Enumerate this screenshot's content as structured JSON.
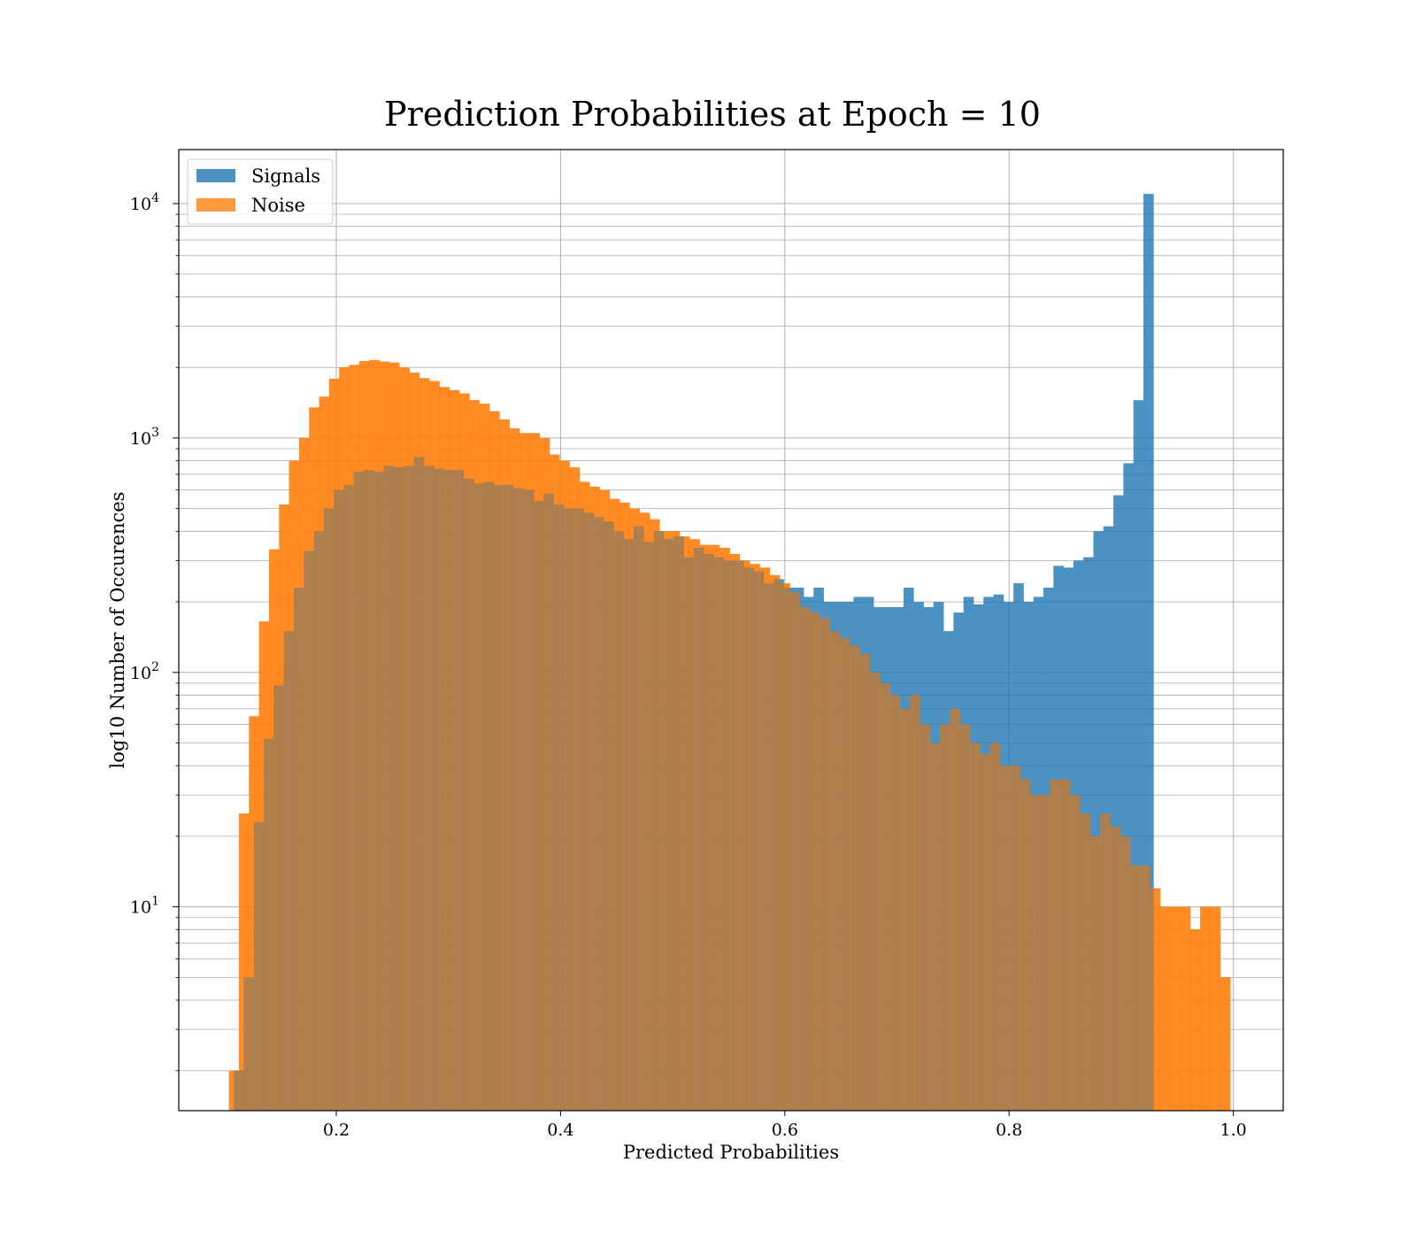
{
  "chart_data": {
    "type": "bar",
    "title": "Prediction Probabilities at Epoch = 10",
    "xlabel": "Predicted Probabilities",
    "ylabel": "log10 Number of Occurences",
    "x_ticks": [
      "0.2",
      "0.4",
      "0.6",
      "0.8",
      "1.0"
    ],
    "x_tick_values": [
      0.2,
      0.4,
      0.6,
      0.8,
      1.0
    ],
    "y_ticks": [
      {
        "base": "10",
        "exp": "1",
        "value": 10
      },
      {
        "base": "10",
        "exp": "2",
        "value": 100
      },
      {
        "base": "10",
        "exp": "3",
        "value": 1000
      },
      {
        "base": "10",
        "exp": "4",
        "value": 10000
      }
    ],
    "xlim": [
      0.0595,
      1.0445
    ],
    "ylim": [
      1.35,
      17000
    ],
    "yscale": "log",
    "grid": true,
    "legend_position": "top-left",
    "series": [
      {
        "name": "Signals",
        "color": "#1f77b4",
        "bin_start": 0.1086,
        "bin_width": 0.008914,
        "values": [
          2,
          5,
          23,
          52,
          88,
          150,
          230,
          330,
          400,
          500,
          600,
          630,
          720,
          730,
          720,
          760,
          750,
          760,
          830,
          760,
          740,
          730,
          730,
          670,
          640,
          650,
          630,
          630,
          610,
          600,
          540,
          580,
          520,
          500,
          500,
          480,
          460,
          440,
          400,
          370,
          420,
          360,
          400,
          370,
          380,
          310,
          340,
          320,
          310,
          300,
          300,
          280,
          270,
          240,
          250,
          230,
          230,
          210,
          230,
          200,
          200,
          200,
          210,
          210,
          190,
          190,
          190,
          230,
          200,
          190,
          200,
          150,
          180,
          210,
          195,
          210,
          215,
          200,
          240,
          200,
          210,
          230,
          285,
          280,
          300,
          310,
          400,
          420,
          570,
          780,
          1450,
          11000
        ]
      },
      {
        "name": "Noise",
        "color": "#ff7f0e",
        "bin_start": 0.1043,
        "bin_width": 0.008929,
        "values": [
          2,
          25,
          65,
          165,
          335,
          520,
          800,
          1000,
          1350,
          1500,
          1790,
          2000,
          2050,
          2130,
          2150,
          2120,
          2100,
          2000,
          1900,
          1800,
          1750,
          1650,
          1600,
          1550,
          1450,
          1400,
          1300,
          1200,
          1100,
          1050,
          1050,
          1000,
          850,
          800,
          750,
          650,
          620,
          600,
          550,
          530,
          500,
          480,
          450,
          400,
          400,
          380,
          370,
          350,
          350,
          340,
          320,
          300,
          290,
          280,
          260,
          240,
          220,
          190,
          180,
          170,
          150,
          140,
          130,
          120,
          100,
          90,
          80,
          70,
          80,
          60,
          50,
          60,
          70,
          60,
          50,
          45,
          50,
          40,
          40,
          35,
          30,
          30,
          35,
          35,
          30,
          25,
          20,
          25,
          22,
          20,
          15,
          15,
          12,
          10,
          10,
          10,
          8,
          10,
          10,
          5
        ]
      }
    ]
  }
}
